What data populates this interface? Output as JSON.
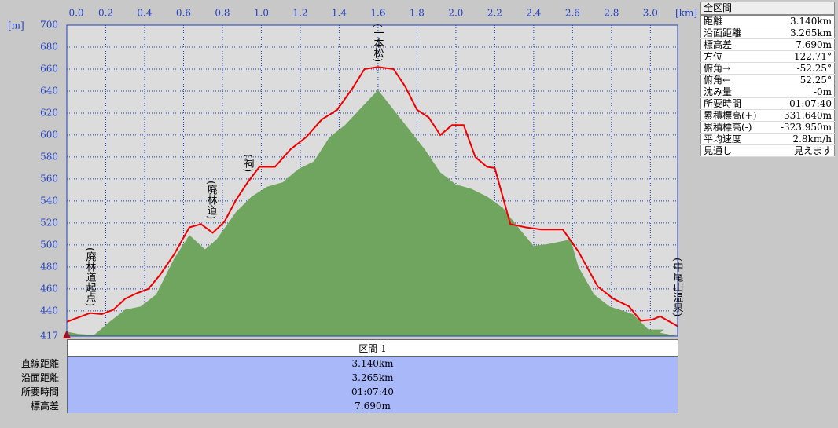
{
  "chart_data": {
    "type": "line",
    "x_label": "[km]",
    "y_label": "[m]",
    "xlim": [
      0,
      3.14
    ],
    "ylim": [
      417,
      700
    ],
    "xticks": [
      {
        "value": 0,
        "label": "0.0"
      },
      0.2,
      0.4,
      0.6,
      0.8,
      {
        "value": 1,
        "label": "1.0"
      },
      1.2,
      1.4,
      1.6,
      1.8,
      {
        "value": 2,
        "label": "2.0"
      },
      2.2,
      2.4,
      2.6,
      2.8,
      {
        "value": 3,
        "label": "3.0"
      }
    ],
    "yticks": [
      417,
      440,
      460,
      480,
      500,
      520,
      540,
      560,
      580,
      600,
      620,
      640,
      660,
      680,
      700
    ],
    "grid": true,
    "series": [
      {
        "type": "area",
        "color": "#6fa55f",
        "x": [
          0,
          0.06,
          0.14,
          0.22,
          0.3,
          0.38,
          0.46,
          0.55,
          0.63,
          0.71,
          0.77,
          0.87,
          0.95,
          1.03,
          1.11,
          1.19,
          1.27,
          1.35,
          1.43,
          1.52,
          1.6,
          1.68,
          1.76,
          1.84,
          1.92,
          2.0,
          2.08,
          2.16,
          2.24,
          2.32,
          2.4,
          2.48,
          2.59,
          2.63,
          2.71,
          2.79,
          2.91,
          2.99,
          3.07,
          3.05,
          3.14
        ],
        "values": [
          421,
          419,
          418,
          430,
          441,
          444,
          455,
          487,
          509,
          496,
          505,
          530,
          544,
          553,
          557,
          569,
          576,
          598,
          609,
          626,
          641,
          623,
          605,
          587,
          566,
          555,
          551,
          544,
          534,
          516,
          499,
          501,
          505,
          480,
          455,
          444,
          437,
          423,
          423,
          420,
          417
        ]
      },
      {
        "type": "line",
        "color": "#ee0000",
        "x": [
          0,
          0.06,
          0.12,
          0.18,
          0.24,
          0.3,
          0.36,
          0.42,
          0.48,
          0.55,
          0.63,
          0.69,
          0.75,
          0.81,
          0.87,
          0.93,
          0.99,
          1.07,
          1.15,
          1.23,
          1.31,
          1.39,
          1.47,
          1.53,
          1.6,
          1.68,
          1.74,
          1.8,
          1.86,
          1.92,
          1.98,
          2.04,
          2.1,
          2.16,
          2.2,
          2.28,
          2.36,
          2.44,
          2.55,
          2.63,
          2.73,
          2.81,
          2.89,
          2.95,
          3.01,
          3.05,
          3.14
        ],
        "values": [
          430,
          434,
          438,
          437,
          441,
          451,
          456,
          460,
          473,
          491,
          516,
          519,
          511,
          521,
          541,
          557,
          571,
          571,
          587,
          598,
          614,
          623,
          643,
          660,
          662,
          660,
          644,
          623,
          616,
          600,
          609,
          609,
          580,
          571,
          570,
          519,
          516,
          514,
          514,
          494,
          462,
          451,
          444,
          431,
          432,
          435,
          426
        ]
      }
    ],
    "annotations": [
      "(廃林道起点)",
      "(廃林道)",
      "(祠)",
      "(一本松)",
      "(中尾山温泉)"
    ]
  },
  "summary": {
    "title": "全区間",
    "rows": [
      [
        "距離",
        "3.140km"
      ],
      [
        "沿面距離",
        "3.265km"
      ],
      [
        "標高差",
        "7.690m"
      ],
      [
        "方位",
        "122.71°"
      ],
      [
        "俯角→",
        "-52.25°"
      ],
      [
        "俯角←",
        "52.25°"
      ],
      [
        "沈み量",
        "-0m"
      ],
      [
        "所要時間",
        "01:07:40"
      ],
      [
        "累積標高(+)",
        "331.640m"
      ],
      [
        "累積標高(-)",
        "-323.950m"
      ],
      [
        "平均速度",
        "2.8km/h"
      ],
      [
        "見通し",
        "見えます"
      ]
    ]
  },
  "section_table": {
    "header": "区間 1",
    "rows": [
      [
        "直線距離",
        "3.140km"
      ],
      [
        "沿面距離",
        "3.265km"
      ],
      [
        "所要時間",
        "01:07:40"
      ],
      [
        "標高差",
        "7.690m"
      ]
    ]
  }
}
